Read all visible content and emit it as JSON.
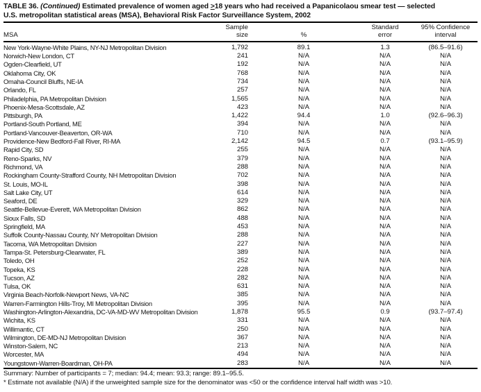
{
  "title": {
    "table_label": "TABLE 36. ",
    "continued": "(Continued)",
    "segment_aged": " Estimated prevalence of women aged ",
    "gte_symbol": ">",
    "segment_rest": "18 years who had received a Papanicolaou smear test — selected",
    "line2": "U.S. metropolitan statistical areas (MSA), Behavioral Risk Factor Surveillance System, 2002"
  },
  "table": {
    "columns": {
      "msa": "MSA",
      "sample_line1": "Sample",
      "sample_line2": "size",
      "percent": "%",
      "se_line1": "Standard",
      "se_line2": "error",
      "ci_line1": "95% Confidence",
      "ci_line2": "interval"
    },
    "rows": [
      {
        "msa": "New York-Wayne-White Plains, NY-NJ Metropolitan Division",
        "sample": "1,792",
        "pct": "89.1",
        "se": "1.3",
        "ci": "(86.5–91.6)"
      },
      {
        "msa": "Norwich-New London, CT",
        "sample": "241",
        "pct": "N/A",
        "se": "N/A",
        "ci": "N/A"
      },
      {
        "msa": "Ogden-Clearfield, UT",
        "sample": "192",
        "pct": "N/A",
        "se": "N/A",
        "ci": "N/A"
      },
      {
        "msa": "Oklahoma City, OK",
        "sample": "768",
        "pct": "N/A",
        "se": "N/A",
        "ci": "N/A"
      },
      {
        "msa": "Omaha-Council Bluffs, NE-IA",
        "sample": "734",
        "pct": "N/A",
        "se": "N/A",
        "ci": "N/A"
      },
      {
        "msa": "Orlando, FL",
        "sample": "257",
        "pct": "N/A",
        "se": "N/A",
        "ci": "N/A"
      },
      {
        "msa": "Philadelphia, PA Metropolitan Division",
        "sample": "1,565",
        "pct": "N/A",
        "se": "N/A",
        "ci": "N/A"
      },
      {
        "msa": "Phoenix-Mesa-Scottsdale, AZ",
        "sample": "423",
        "pct": "N/A",
        "se": "N/A",
        "ci": "N/A"
      },
      {
        "msa": "Pittsburgh, PA",
        "sample": "1,422",
        "pct": "94.4",
        "se": "1.0",
        "ci": "(92.6–96.3)"
      },
      {
        "msa": "Portland-South Portland, ME",
        "sample": "394",
        "pct": "N/A",
        "se": "N/A",
        "ci": "N/A"
      },
      {
        "msa": "Portland-Vancouver-Beaverton, OR-WA",
        "sample": "710",
        "pct": "N/A",
        "se": "N/A",
        "ci": "N/A"
      },
      {
        "msa": "Providence-New Bedford-Fall River, RI-MA",
        "sample": "2,142",
        "pct": "94.5",
        "se": "0.7",
        "ci": "(93.1–95.9)"
      },
      {
        "msa": "Rapid City, SD",
        "sample": "255",
        "pct": "N/A",
        "se": "N/A",
        "ci": "N/A"
      },
      {
        "msa": "Reno-Sparks, NV",
        "sample": "379",
        "pct": "N/A",
        "se": "N/A",
        "ci": "N/A"
      },
      {
        "msa": "Richmond, VA",
        "sample": "288",
        "pct": "N/A",
        "se": "N/A",
        "ci": "N/A"
      },
      {
        "msa": "Rockingham County-Strafford County, NH Metropolitan Division",
        "sample": "702",
        "pct": "N/A",
        "se": "N/A",
        "ci": "N/A"
      },
      {
        "msa": "St. Louis, MO-IL",
        "sample": "398",
        "pct": "N/A",
        "se": "N/A",
        "ci": "N/A"
      },
      {
        "msa": "Salt Lake City, UT",
        "sample": "614",
        "pct": "N/A",
        "se": "N/A",
        "ci": "N/A"
      },
      {
        "msa": "Seaford, DE",
        "sample": "329",
        "pct": "N/A",
        "se": "N/A",
        "ci": "N/A"
      },
      {
        "msa": "Seattle-Bellevue-Everett, WA Metropolitan Division",
        "sample": "862",
        "pct": "N/A",
        "se": "N/A",
        "ci": "N/A"
      },
      {
        "msa": "Sioux Falls, SD",
        "sample": "488",
        "pct": "N/A",
        "se": "N/A",
        "ci": "N/A"
      },
      {
        "msa": "Springfield, MA",
        "sample": "453",
        "pct": "N/A",
        "se": "N/A",
        "ci": "N/A"
      },
      {
        "msa": "Suffolk County-Nassau County, NY Metropolitan Division",
        "sample": "288",
        "pct": "N/A",
        "se": "N/A",
        "ci": "N/A"
      },
      {
        "msa": "Tacoma, WA Metropolitan Division",
        "sample": "227",
        "pct": "N/A",
        "se": "N/A",
        "ci": "N/A"
      },
      {
        "msa": "Tampa-St. Petersburg-Clearwater, FL",
        "sample": "389",
        "pct": "N/A",
        "se": "N/A",
        "ci": "N/A"
      },
      {
        "msa": "Toledo, OH",
        "sample": "252",
        "pct": "N/A",
        "se": "N/A",
        "ci": "N/A"
      },
      {
        "msa": "Topeka, KS",
        "sample": "228",
        "pct": "N/A",
        "se": "N/A",
        "ci": "N/A"
      },
      {
        "msa": "Tucson, AZ",
        "sample": "282",
        "pct": "N/A",
        "se": "N/A",
        "ci": "N/A"
      },
      {
        "msa": "Tulsa, OK",
        "sample": "631",
        "pct": "N/A",
        "se": "N/A",
        "ci": "N/A"
      },
      {
        "msa": "Virginia Beach-Norfolk-Newport News, VA-NC",
        "sample": "385",
        "pct": "N/A",
        "se": "N/A",
        "ci": "N/A"
      },
      {
        "msa": "Warren-Farmington Hills-Troy, MI Metropolitan Division",
        "sample": "395",
        "pct": "N/A",
        "se": "N/A",
        "ci": "N/A"
      },
      {
        "msa": "Washington-Arlington-Alexandria, DC-VA-MD-WV Metropolitan Division",
        "sample": "1,878",
        "pct": "95.5",
        "se": "0.9",
        "ci": "(93.7–97.4)"
      },
      {
        "msa": "Wichita, KS",
        "sample": "331",
        "pct": "N/A",
        "se": "N/A",
        "ci": "N/A"
      },
      {
        "msa": "Willimantic, CT",
        "sample": "250",
        "pct": "N/A",
        "se": "N/A",
        "ci": "N/A"
      },
      {
        "msa": "Wilmington, DE-MD-NJ Metropolitan Division",
        "sample": "367",
        "pct": "N/A",
        "se": "N/A",
        "ci": "N/A"
      },
      {
        "msa": "Winston-Salem, NC",
        "sample": "213",
        "pct": "N/A",
        "se": "N/A",
        "ci": "N/A"
      },
      {
        "msa": "Worcester, MA",
        "sample": "494",
        "pct": "N/A",
        "se": "N/A",
        "ci": "N/A"
      },
      {
        "msa": "Youngstown-Warren-Boardman, OH-PA",
        "sample": "283",
        "pct": "N/A",
        "se": "N/A",
        "ci": "N/A"
      }
    ]
  },
  "summary": "Summary: Number of participants = 7; median: 94.4; mean: 93.3; range: 89.1–95.5.",
  "footnote": "* Estimate not available (N/A) if the unweighted sample size for the denominator was <50 or the confidence interval half width was >10."
}
